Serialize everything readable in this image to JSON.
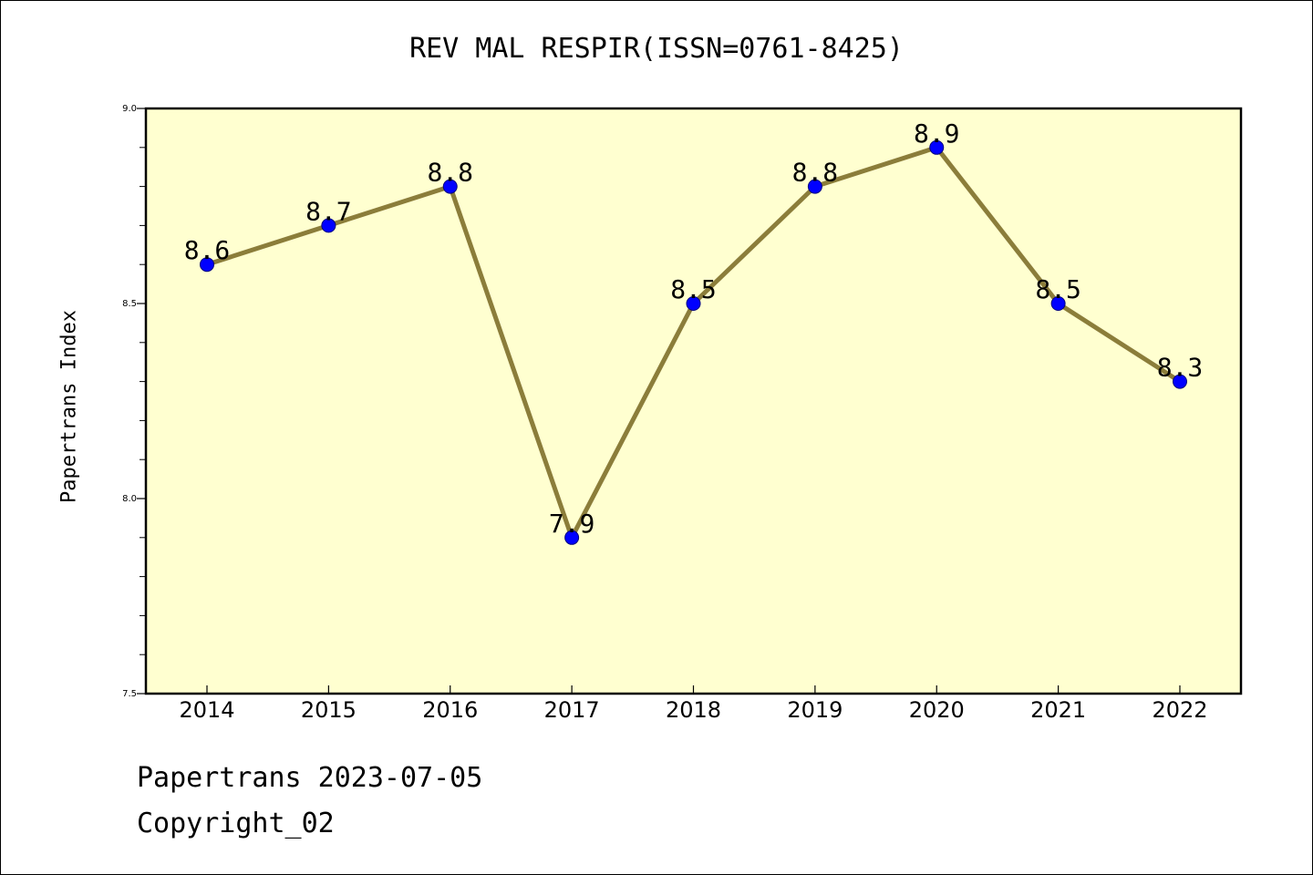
{
  "chart_data": {
    "type": "line",
    "title": "REV MAL RESPIR(ISSN=0761-8425)",
    "xlabel": "",
    "ylabel": "Papertrans Index",
    "categories": [
      "2014",
      "2015",
      "2016",
      "2017",
      "2018",
      "2019",
      "2020",
      "2021",
      "2022"
    ],
    "series": [
      {
        "values": [
          8.6,
          8.7,
          8.8,
          7.9,
          8.5,
          8.8,
          8.9,
          8.5,
          8.3
        ]
      }
    ],
    "data_labels": [
      "8.6",
      "8.7",
      "8.8",
      "7.9",
      "8.5",
      "8.8",
      "8.9",
      "8.5",
      "8.3"
    ],
    "ylim": [
      7.5,
      9.0
    ],
    "yticks": [
      "7.5",
      "8.0",
      "8.5",
      "9.0"
    ],
    "y_minor_step": 0.1,
    "grid": false,
    "colors": {
      "plot_background": "#ffffd0",
      "line": "#8b7d3a",
      "marker": "#0000ff",
      "marker_edge": "#000080",
      "axes": "#000000"
    }
  },
  "footer": {
    "line1": "Papertrans 2023-07-05",
    "line2": "Copyright_02"
  }
}
